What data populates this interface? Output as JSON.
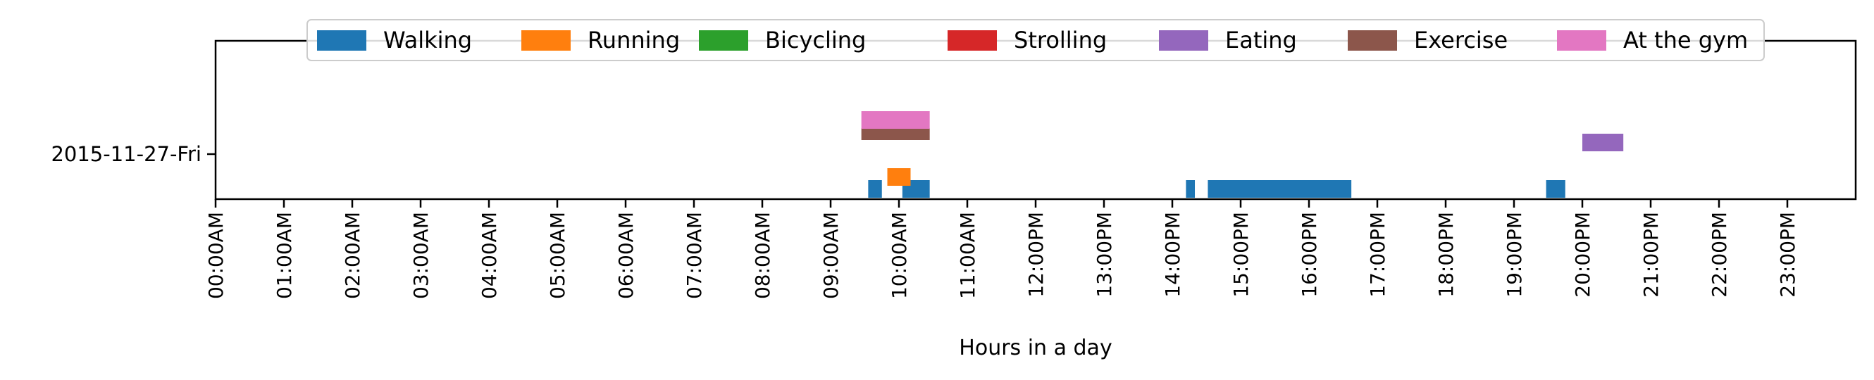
{
  "chart_data": {
    "type": "bar",
    "orientation": "horizontal-timeline",
    "title": "",
    "xlabel": "Hours in a day",
    "ylabel": "",
    "xlim": [
      0,
      24
    ],
    "x_ticks": [
      {
        "value": 0,
        "label": "00:00AM"
      },
      {
        "value": 1,
        "label": "01:00AM"
      },
      {
        "value": 2,
        "label": "02:00AM"
      },
      {
        "value": 3,
        "label": "03:00AM"
      },
      {
        "value": 4,
        "label": "04:00AM"
      },
      {
        "value": 5,
        "label": "05:00AM"
      },
      {
        "value": 6,
        "label": "06:00AM"
      },
      {
        "value": 7,
        "label": "07:00AM"
      },
      {
        "value": 8,
        "label": "08:00AM"
      },
      {
        "value": 9,
        "label": "09:00AM"
      },
      {
        "value": 10,
        "label": "10:00AM"
      },
      {
        "value": 11,
        "label": "11:00AM"
      },
      {
        "value": 12,
        "label": "12:00PM"
      },
      {
        "value": 13,
        "label": "13:00PM"
      },
      {
        "value": 14,
        "label": "14:00PM"
      },
      {
        "value": 15,
        "label": "15:00PM"
      },
      {
        "value": 16,
        "label": "16:00PM"
      },
      {
        "value": 17,
        "label": "17:00PM"
      },
      {
        "value": 18,
        "label": "18:00PM"
      },
      {
        "value": 19,
        "label": "19:00PM"
      },
      {
        "value": 20,
        "label": "20:00PM"
      },
      {
        "value": 21,
        "label": "21:00PM"
      },
      {
        "value": 22,
        "label": "22:00PM"
      },
      {
        "value": 23,
        "label": "23:00PM"
      }
    ],
    "categories": [
      "2015-11-27-Fri"
    ],
    "legend_placement": "top-center",
    "grid": false,
    "series": [
      {
        "name": "Walking",
        "color": "#1f77b4",
        "segments": [
          [
            9.55,
            9.75
          ],
          [
            10.05,
            10.45
          ],
          [
            14.2,
            14.33
          ],
          [
            14.52,
            16.62
          ],
          [
            19.47,
            19.75
          ]
        ]
      },
      {
        "name": "Running",
        "color": "#ff7f0e",
        "segments": [
          [
            9.83,
            10.17
          ]
        ]
      },
      {
        "name": "Bicycling",
        "color": "#2ca02c",
        "segments": []
      },
      {
        "name": "Strolling",
        "color": "#d62728",
        "segments": []
      },
      {
        "name": "Eating",
        "color": "#9467bd",
        "segments": [
          [
            20.0,
            20.6
          ]
        ]
      },
      {
        "name": "Exercise",
        "color": "#8c564b",
        "segments": [
          [
            9.45,
            10.45
          ]
        ]
      },
      {
        "name": "At the gym",
        "color": "#e377c2",
        "segments": [
          [
            9.45,
            10.45
          ]
        ]
      }
    ]
  }
}
